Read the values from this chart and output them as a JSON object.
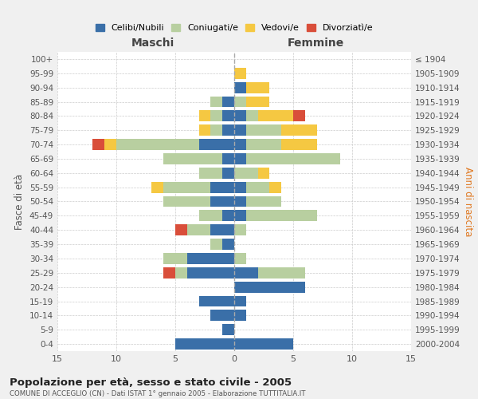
{
  "age_groups": [
    "0-4",
    "5-9",
    "10-14",
    "15-19",
    "20-24",
    "25-29",
    "30-34",
    "35-39",
    "40-44",
    "45-49",
    "50-54",
    "55-59",
    "60-64",
    "65-69",
    "70-74",
    "75-79",
    "80-84",
    "85-89",
    "90-94",
    "95-99",
    "100+"
  ],
  "birth_years": [
    "2000-2004",
    "1995-1999",
    "1990-1994",
    "1985-1989",
    "1980-1984",
    "1975-1979",
    "1970-1974",
    "1965-1969",
    "1960-1964",
    "1955-1959",
    "1950-1954",
    "1945-1949",
    "1940-1944",
    "1935-1939",
    "1930-1934",
    "1925-1929",
    "1920-1924",
    "1915-1919",
    "1910-1914",
    "1905-1909",
    "≤ 1904"
  ],
  "males": {
    "celibe": [
      5,
      1,
      2,
      3,
      0,
      4,
      4,
      1,
      2,
      1,
      2,
      2,
      1,
      1,
      3,
      1,
      1,
      1,
      0,
      0,
      0
    ],
    "coniugato": [
      0,
      0,
      0,
      0,
      0,
      1,
      2,
      1,
      2,
      2,
      4,
      4,
      2,
      5,
      7,
      1,
      1,
      1,
      0,
      0,
      0
    ],
    "vedovo": [
      0,
      0,
      0,
      0,
      0,
      0,
      0,
      0,
      0,
      0,
      0,
      1,
      0,
      0,
      1,
      1,
      1,
      0,
      0,
      0,
      0
    ],
    "divorziato": [
      0,
      0,
      0,
      0,
      0,
      1,
      0,
      0,
      1,
      0,
      0,
      0,
      0,
      0,
      1,
      0,
      0,
      0,
      0,
      0,
      0
    ]
  },
  "females": {
    "nubile": [
      5,
      0,
      1,
      1,
      6,
      2,
      0,
      0,
      0,
      1,
      1,
      1,
      0,
      1,
      1,
      1,
      1,
      0,
      1,
      0,
      0
    ],
    "coniugata": [
      0,
      0,
      0,
      0,
      0,
      4,
      1,
      0,
      1,
      6,
      3,
      2,
      2,
      8,
      3,
      3,
      1,
      1,
      0,
      0,
      0
    ],
    "vedova": [
      0,
      0,
      0,
      0,
      0,
      0,
      0,
      0,
      0,
      0,
      0,
      1,
      1,
      0,
      3,
      3,
      3,
      2,
      2,
      1,
      0
    ],
    "divorziata": [
      0,
      0,
      0,
      0,
      0,
      0,
      0,
      0,
      0,
      0,
      0,
      0,
      0,
      0,
      0,
      0,
      1,
      0,
      0,
      0,
      0
    ]
  },
  "colors": {
    "celibe_nubile": "#3a6fa8",
    "coniugato_coniugata": "#b8cfa0",
    "vedovo_vedova": "#f5c842",
    "divorziato_divorziata": "#d94e3a"
  },
  "title": "Popolazione per età, sesso e stato civile - 2005",
  "subtitle": "COMUNE DI ACCEGLIO (CN) - Dati ISTAT 1° gennaio 2005 - Elaborazione TUTTITALIA.IT",
  "xlabel_left": "Maschi",
  "xlabel_right": "Femmine",
  "ylabel_left": "Fasce di età",
  "ylabel_right": "Anni di nascita",
  "xlim": 15,
  "legend_labels": [
    "Celibi/Nubili",
    "Coniugati/e",
    "Vedovi/e",
    "Divorziatì/e"
  ],
  "bg_color": "#f0f0f0",
  "plot_bg": "#ffffff"
}
